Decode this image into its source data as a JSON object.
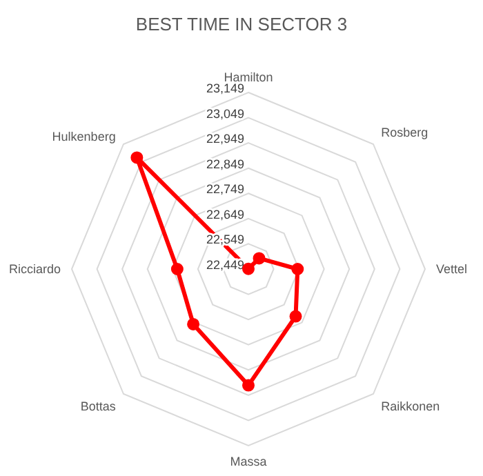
{
  "chart_data": {
    "type": "radar",
    "title": "BEST TIME IN SECTOR 3",
    "categories": [
      "Hamilton",
      "Rosberg",
      "Vettel",
      "Raikkonen",
      "Massa",
      "Bottas",
      "Ricciardo",
      "Hulkenberg"
    ],
    "series": [
      {
        "color": "#ff0000",
        "values": [
          22450,
          22509,
          22644,
          22714,
          22910,
          22758,
          22731,
          23074
        ]
      }
    ],
    "ylim": [
      22449,
      23149
    ],
    "yticks": [
      {
        "value": 22449,
        "label": "22,449"
      },
      {
        "value": 22549,
        "label": "22,549"
      },
      {
        "value": 22649,
        "label": "22,649"
      },
      {
        "value": 22749,
        "label": "22,749"
      },
      {
        "value": 22849,
        "label": "22,849"
      },
      {
        "value": 22949,
        "label": "22,949"
      },
      {
        "value": 23049,
        "label": "23,049"
      },
      {
        "value": 23149,
        "label": "23,149"
      }
    ],
    "grid": true,
    "marker": "circle",
    "line_style": "solid"
  }
}
